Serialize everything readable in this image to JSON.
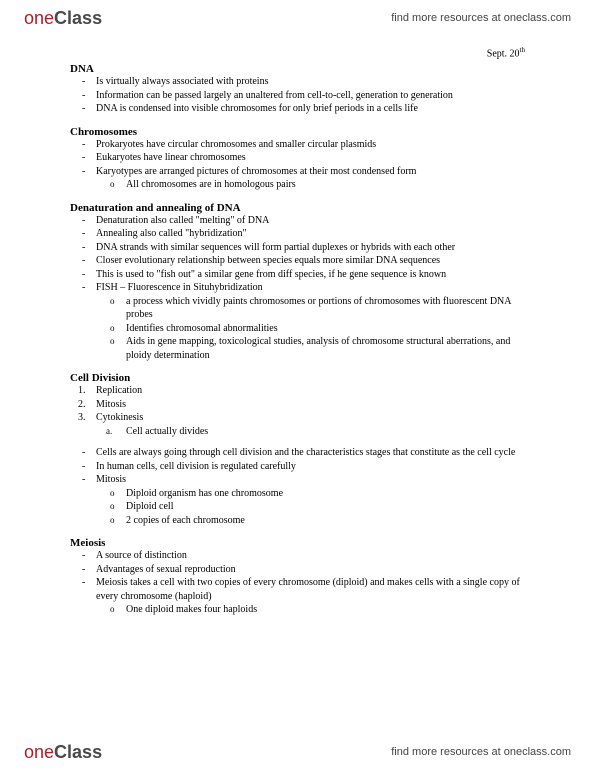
{
  "brand": {
    "part1": "one",
    "part2": "Class",
    "tagline": "find more resources at oneclass.com"
  },
  "date": {
    "text": "Sept. 20",
    "sup": "th"
  },
  "sections": {
    "dna": {
      "title": "DNA",
      "items": [
        "Is virtually always associated with proteins",
        "Information can be passed largely an unaltered from cell-to-cell, generation to generation",
        "DNA is condensed into visible chromosomes for only brief periods in a cells life"
      ]
    },
    "chrom": {
      "title": "Chromosomes",
      "items": [
        "Prokaryotes have circular chromosomes and smaller circular plasmids",
        "Eukaryotes have linear chromosomes",
        "Karyotypes are arranged pictures of chromosomes at their most condensed form"
      ],
      "sub3": [
        "All chromosomes are in homologous pairs"
      ]
    },
    "denat": {
      "title": "Denaturation and annealing of DNA",
      "items": [
        "Denaturation also called \"melting\" of DNA",
        "Annealing also called \"hybridization\"",
        "DNA strands with similar sequences will form partial duplexes or hybrids with each other",
        "Closer evolutionary relationship between species equals more similar DNA sequences",
        "This is used to \"fish out\" a similar gene from diff species, if he gene sequence is known",
        "FISH – Fluorescence in Situhybridization"
      ],
      "sub6": [
        "a process which vividly paints chromosomes or portions of chromosomes with fluorescent DNA probes",
        "Identifies chromosomal abnormalities",
        "Aids in gene mapping, toxicological studies, analysis of chromosome structural aberrations, and ploidy determination"
      ]
    },
    "celldiv": {
      "title": "Cell Division",
      "ol": [
        "Replication",
        "Mitosis",
        "Cytokinesis"
      ],
      "ol3sub": [
        "Cell actually divides"
      ],
      "items": [
        "Cells are always going through cell division and the characteristics stages that constitute as the cell cycle",
        "In human cells, cell division is regulated carefully",
        "Mitosis"
      ],
      "sub3": [
        "Diploid organism has one chromosome",
        "Diploid cell",
        "2 copies of each chromosome"
      ]
    },
    "meiosis": {
      "title": "Meiosis",
      "items": [
        "A source of distinction",
        "Advantages of sexual reproduction",
        "Meiosis takes a cell with two copies of every chromosome (diploid) and makes cells with a single copy of every chromosome (haploid)"
      ],
      "sub3": [
        "One diploid makes four haploids"
      ]
    }
  }
}
